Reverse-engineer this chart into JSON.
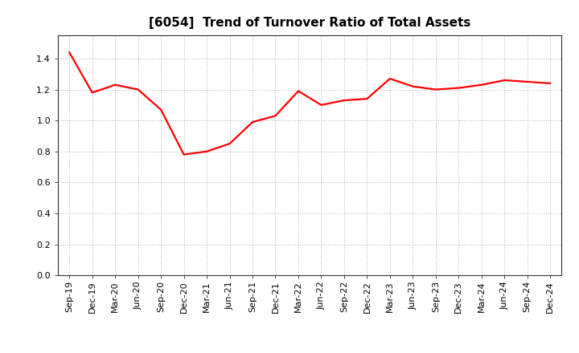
{
  "title": "[6054]  Trend of Turnover Ratio of Total Assets",
  "x_labels": [
    "Sep-19",
    "Dec-19",
    "Mar-20",
    "Jun-20",
    "Sep-20",
    "Dec-20",
    "Mar-21",
    "Jun-21",
    "Sep-21",
    "Dec-21",
    "Mar-22",
    "Jun-22",
    "Sep-22",
    "Dec-22",
    "Mar-23",
    "Jun-23",
    "Sep-23",
    "Dec-23",
    "Mar-24",
    "Jun-24",
    "Sep-24",
    "Dec-24"
  ],
  "values": [
    1.44,
    1.18,
    1.23,
    1.2,
    1.07,
    0.78,
    0.8,
    0.85,
    0.99,
    1.03,
    1.19,
    1.1,
    1.13,
    1.14,
    1.27,
    1.22,
    1.2,
    1.21,
    1.23,
    1.26,
    1.25,
    1.24
  ],
  "line_color": "#FF0000",
  "line_width": 1.6,
  "ylim": [
    0.0,
    1.55
  ],
  "yticks": [
    0.0,
    0.2,
    0.4,
    0.6,
    0.8,
    1.0,
    1.2,
    1.4
  ],
  "grid_color": "#aaaaaa",
  "background_color": "#ffffff",
  "title_fontsize": 11,
  "tick_fontsize": 8
}
